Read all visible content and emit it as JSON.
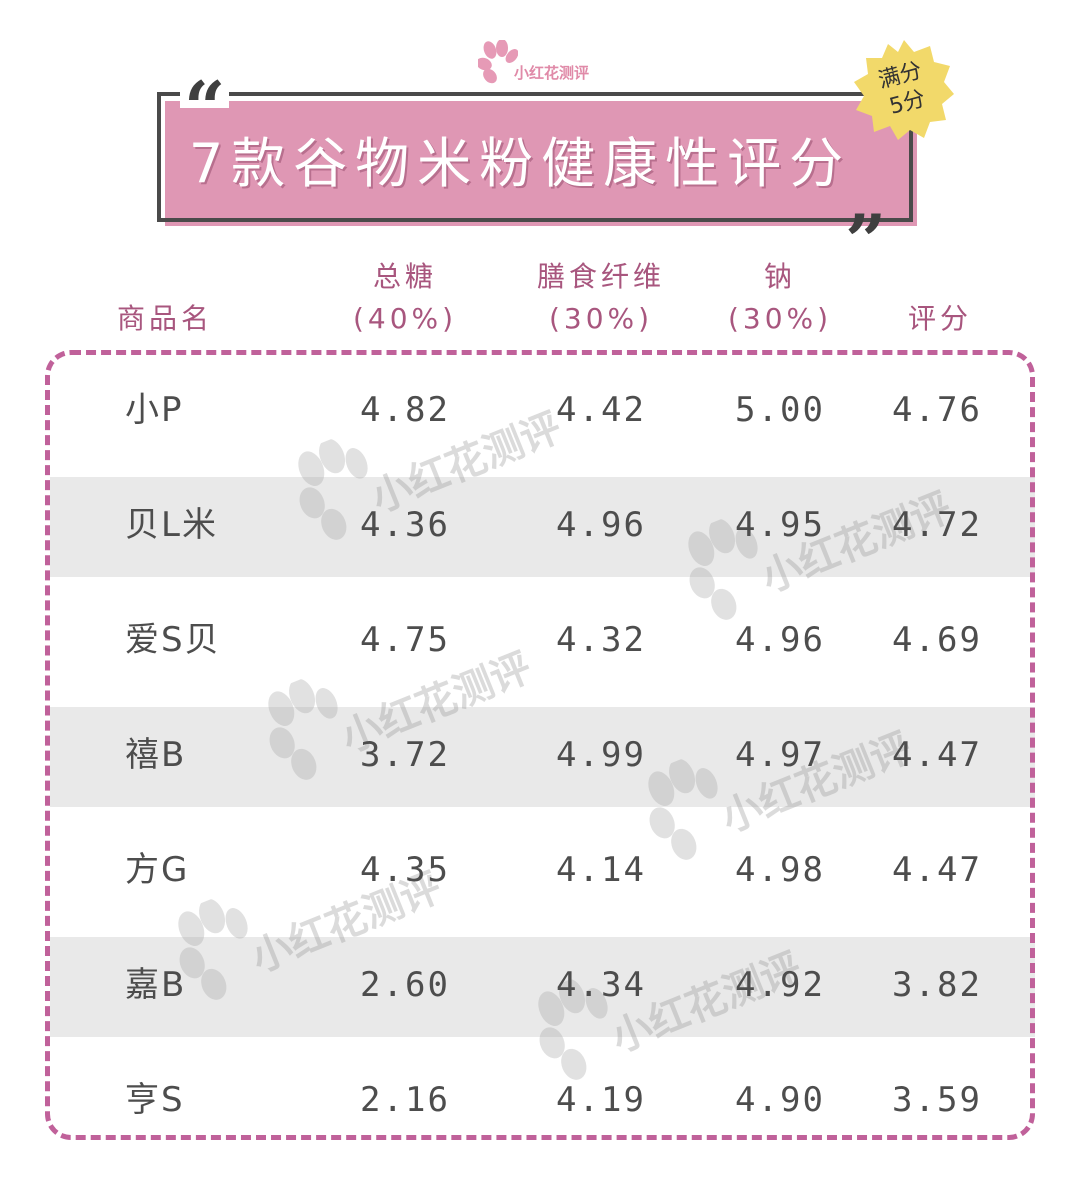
{
  "logo": {
    "text": "小红花测评"
  },
  "title": "7款谷物米粉健康性评分",
  "badge": {
    "line1": "满分",
    "line2": "5分"
  },
  "colors": {
    "title_bg": "#df97b4",
    "header_text": "#a8567e",
    "dashed_border": "#c0619a",
    "stripe": "#e9e9e9",
    "badge": "#f2d96a"
  },
  "watermark": "小红花测评",
  "chart_data": {
    "type": "table",
    "title": "7款谷物米粉健康性评分",
    "note": "满分5分",
    "columns": [
      {
        "line1": "",
        "line2": "商品名"
      },
      {
        "line1": "总糖",
        "line2": "(40%)"
      },
      {
        "line1": "膳食纤维",
        "line2": "(30%)"
      },
      {
        "line1": "钠",
        "line2": "(30%)"
      },
      {
        "line1": "",
        "line2": "评分"
      }
    ],
    "rows": [
      [
        "小P",
        "4.82",
        "4.42",
        "5.00",
        "4.76"
      ],
      [
        "贝L米",
        "4.36",
        "4.96",
        "4.95",
        "4.72"
      ],
      [
        "爱S贝",
        "4.75",
        "4.32",
        "4.96",
        "4.69"
      ],
      [
        "禧B",
        "3.72",
        "4.99",
        "4.97",
        "4.47"
      ],
      [
        "方G",
        "4.35",
        "4.14",
        "4.98",
        "4.47"
      ],
      [
        "嘉B",
        "2.60",
        "4.34",
        "4.92",
        "3.82"
      ],
      [
        "亨S",
        "2.16",
        "4.19",
        "4.90",
        "3.59"
      ]
    ]
  }
}
